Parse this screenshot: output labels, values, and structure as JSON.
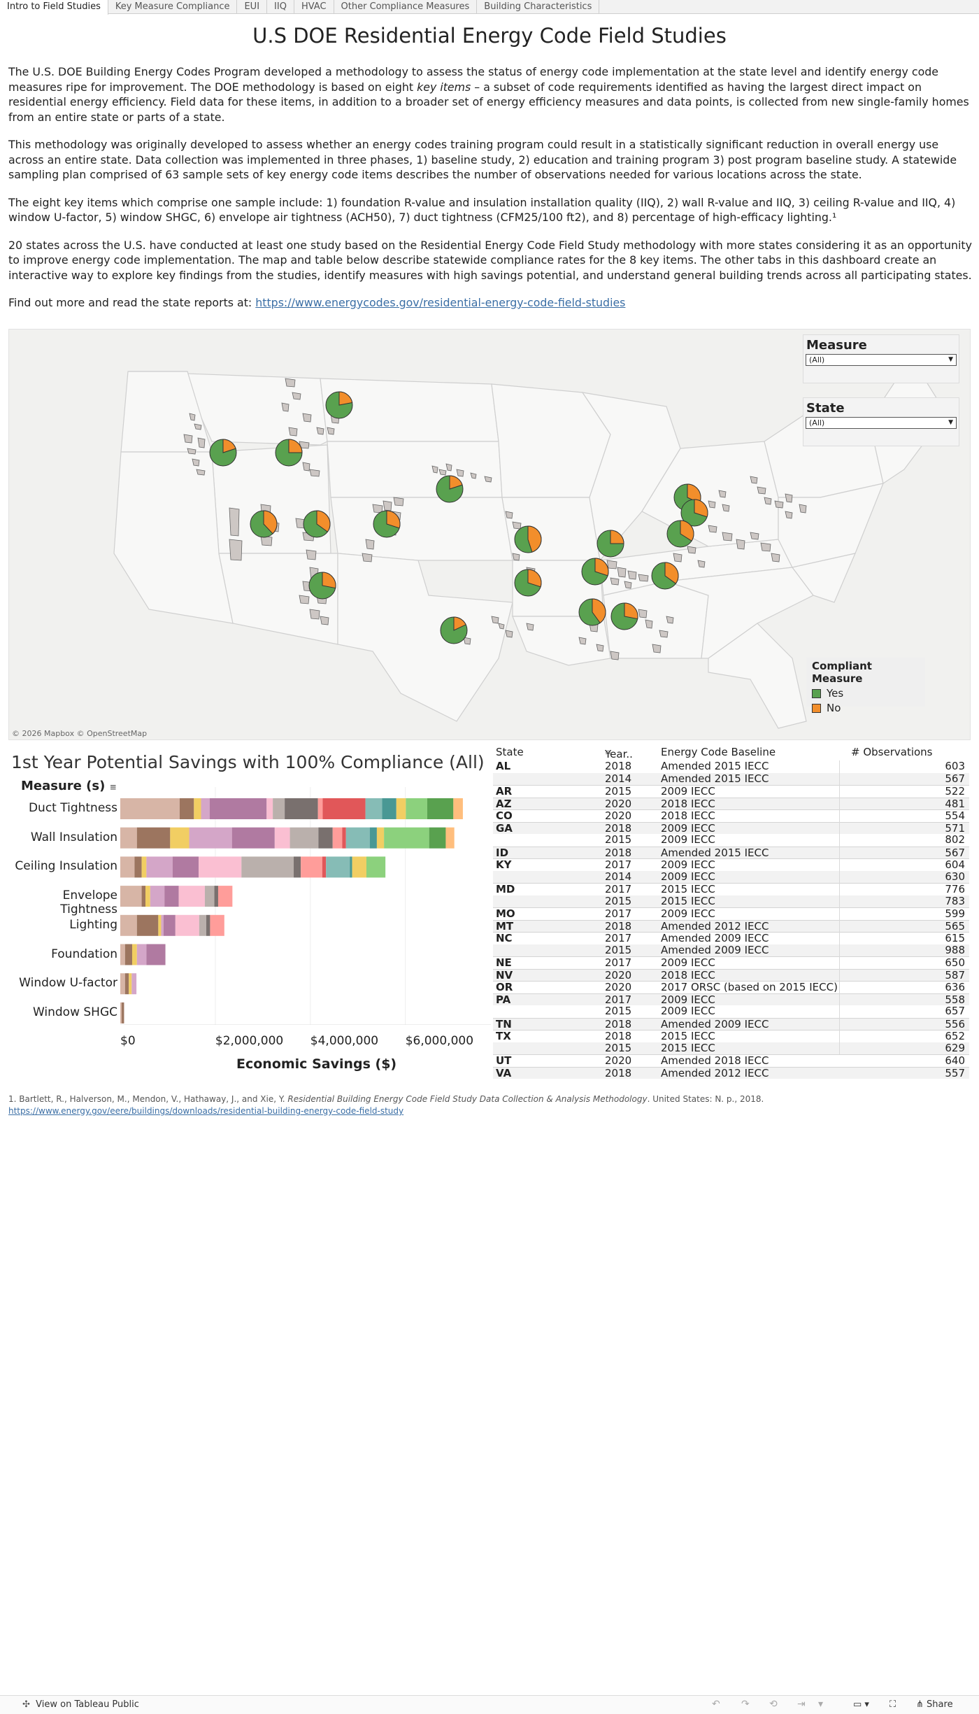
{
  "tabs": [
    "Intro to Field Studies",
    "Key Measure Compliance",
    "EUI",
    "IIQ",
    "HVAC",
    "Other Compliance Measures",
    "Building Characteristics"
  ],
  "page": {
    "title": "U.S DOE Residential Energy Code Field Studies",
    "p1a": "The U.S. DOE Building Energy Codes Program developed a methodology to assess the status of energy code implementation at the state level and identify energy code measures ripe for improvement. The DOE methodology is based on eight ",
    "p1_em": "key items",
    "p1b": " – a subset of code requirements identified as having the largest direct impact on residential energy efficiency. Field data for these items, in addition to a broader set of energy efficiency measures and data points, is collected from new single-family homes from an entire state or parts of a state.",
    "p2": "This methodology was originally developed to assess whether an energy codes training program could result in a statistically significant reduction in overall energy use across an entire state. Data collection was implemented in three phases, 1) baseline study, 2) education and training program 3) post program baseline study. A statewide sampling plan comprised of 63 sample sets of key energy code items describes the number of observations needed for various locations across the state.",
    "p3": "The eight key items which comprise one sample include: 1) foundation R-value and insulation installation quality (IIQ), 2) wall R-value and IIQ, 3) ceiling R-value and IIQ, 4) window U-factor, 5) window SHGC, 6) envelope air tightness (ACH50), 7) duct tightness (CFM25/100 ft2), and 8) percentage of high-efficacy lighting.¹",
    "p4": "20 states across the U.S. have conducted at least one study based on the Residential Energy Code Field Study methodology with more states considering it as an opportunity to improve energy code implementation. The map and table below describe statewide compliance rates for the 8 key items. The other tabs in this dashboard create an interactive way to explore key findings from the studies, identify measures with high savings potential, and understand general building trends across all participating states.",
    "link_prefix": "Find out more and read the state reports at: ",
    "link_text": "https://www.energycodes.gov/residential-energy-code-field-studies"
  },
  "map": {
    "attribution": "© 2026 Mapbox  © OpenStreetMap",
    "filters": [
      {
        "title": "Measure",
        "value": "(All)"
      },
      {
        "title": "State",
        "value": "(All)"
      }
    ],
    "legend": {
      "title": "Compliant Measure",
      "items": [
        {
          "label": "Yes",
          "color": "#59a14f"
        },
        {
          "label": "No",
          "color": "#f28e2b"
        }
      ]
    },
    "pies": [
      {
        "state": "MT",
        "yes": 0.78
      },
      {
        "state": "OR",
        "yes": 0.8
      },
      {
        "state": "ID",
        "yes": 0.75
      },
      {
        "state": "NV",
        "yes": 0.62
      },
      {
        "state": "UT",
        "yes": 0.65
      },
      {
        "state": "CO",
        "yes": 0.7
      },
      {
        "state": "AZ",
        "yes": 0.72
      },
      {
        "state": "NE",
        "yes": 0.8
      },
      {
        "state": "TX",
        "yes": 0.82
      },
      {
        "state": "MO",
        "yes": 0.55
      },
      {
        "state": "AR",
        "yes": 0.7
      },
      {
        "state": "KY",
        "yes": 0.75
      },
      {
        "state": "TN",
        "yes": 0.7
      },
      {
        "state": "NC",
        "yes": 0.65
      },
      {
        "state": "PA",
        "yes": 0.68
      },
      {
        "state": "MD",
        "yes": 0.7
      },
      {
        "state": "VA",
        "yes": 0.66
      },
      {
        "state": "AL",
        "yes": 0.6
      },
      {
        "state": "GA",
        "yes": 0.72
      }
    ]
  },
  "savings_chart": {
    "title": "1st Year Potential Savings with 100% Compliance (All)",
    "measure_header": "Measure (s)",
    "x_title": "Economic Savings ($)",
    "x_ticks": [
      "$0",
      "$2,000,000",
      "$4,000,000",
      "$6,000,000"
    ]
  },
  "chart_data": {
    "type": "bar",
    "orientation": "horizontal",
    "stacked": true,
    "title": "1st Year Potential Savings with 100% Compliance (All)",
    "xlabel": "Economic Savings ($)",
    "ylabel": "Measure (s)",
    "xlim": [
      0,
      7800000
    ],
    "categories": [
      "Duct Tightness",
      "Wall Insulation",
      "Ceiling Insulation",
      "Envelope Tightness",
      "Lighting",
      "Foundation",
      "Window U-factor",
      "Window SHGC"
    ],
    "segment_palette": [
      "#d7b5a6",
      "#9c755f",
      "#f1ce63",
      "#d4a6c8",
      "#b07aa1",
      "#fabfd2",
      "#bab0ac",
      "#79706e",
      "#ff9d9a",
      "#e15759",
      "#86bcb6",
      "#499894",
      "#f1ce63",
      "#8cd17d",
      "#59a14f",
      "#ffbe7d",
      "#f28e2b",
      "#4e79a7"
    ],
    "segments": [
      [
        1250000,
        300000,
        150000,
        180000,
        1200000,
        130000,
        250000,
        700000,
        100000,
        900000,
        350000,
        300000,
        200000,
        450000,
        550000,
        200000
      ],
      [
        350000,
        700000,
        400000,
        900000,
        900000,
        320000,
        600000,
        300000,
        200000,
        80000,
        500000,
        150000,
        150000,
        950000,
        350000,
        180000
      ],
      [
        300000,
        150000,
        100000,
        550000,
        550000,
        900000,
        1100000,
        150000,
        450000,
        80000,
        500000,
        50000,
        300000,
        400000
      ],
      [
        450000,
        80000,
        100000,
        300000,
        300000,
        550000,
        200000,
        80000,
        300000
      ],
      [
        350000,
        450000,
        60000,
        50000,
        250000,
        500000,
        150000,
        80000,
        300000
      ],
      [
        100000,
        150000,
        100000,
        200000,
        400000
      ],
      [
        100000,
        80000,
        60000,
        100000
      ],
      [
        30000,
        50000
      ]
    ]
  },
  "obs_table": {
    "headers": [
      "State",
      "Year..",
      "Energy Code Baseline",
      "# Observations"
    ],
    "groups": [
      {
        "state": "AL",
        "rows": [
          [
            "2018",
            "Amended 2015 IECC",
            "603"
          ],
          [
            "2014",
            "Amended 2015 IECC",
            "567"
          ]
        ]
      },
      {
        "state": "AR",
        "rows": [
          [
            "2015",
            "2009 IECC",
            "522"
          ]
        ]
      },
      {
        "state": "AZ",
        "rows": [
          [
            "2020",
            "2018 IECC",
            "481"
          ]
        ]
      },
      {
        "state": "CO",
        "rows": [
          [
            "2020",
            "2018 IECC",
            "554"
          ]
        ]
      },
      {
        "state": "GA",
        "rows": [
          [
            "2018",
            "2009 IECC",
            "571"
          ],
          [
            "2015",
            "2009 IECC",
            "802"
          ]
        ]
      },
      {
        "state": "ID",
        "rows": [
          [
            "2018",
            "Amended 2015 IECC",
            "567"
          ]
        ]
      },
      {
        "state": "KY",
        "rows": [
          [
            "2017",
            "2009 IECC",
            "604"
          ],
          [
            "2014",
            "2009 IECC",
            "630"
          ]
        ]
      },
      {
        "state": "MD",
        "rows": [
          [
            "2017",
            "2015 IECC",
            "776"
          ],
          [
            "2015",
            "2015 IECC",
            "783"
          ]
        ]
      },
      {
        "state": "MO",
        "rows": [
          [
            "2017",
            "2009 IECC",
            "599"
          ]
        ]
      },
      {
        "state": "MT",
        "rows": [
          [
            "2018",
            "Amended 2012 IECC",
            "565"
          ]
        ]
      },
      {
        "state": "NC",
        "rows": [
          [
            "2017",
            "Amended 2009 IECC",
            "615"
          ],
          [
            "2015",
            "Amended 2009 IECC",
            "988"
          ]
        ]
      },
      {
        "state": "NE",
        "rows": [
          [
            "2017",
            "2009 IECC",
            "650"
          ]
        ]
      },
      {
        "state": "NV",
        "rows": [
          [
            "2020",
            "2018 IECC",
            "587"
          ]
        ]
      },
      {
        "state": "OR",
        "rows": [
          [
            "2020",
            "2017 ORSC (based on 2015 IECC)",
            "636"
          ]
        ]
      },
      {
        "state": "PA",
        "rows": [
          [
            "2017",
            "2009 IECC",
            "558"
          ],
          [
            "2015",
            "2009 IECC",
            "657"
          ]
        ]
      },
      {
        "state": "TN",
        "rows": [
          [
            "2018",
            "Amended 2009 IECC",
            "556"
          ]
        ]
      },
      {
        "state": "TX",
        "rows": [
          [
            "2018",
            "2015 IECC",
            "652"
          ],
          [
            "2015",
            "2015 IECC",
            "629"
          ]
        ]
      },
      {
        "state": "UT",
        "rows": [
          [
            "2020",
            "Amended 2018 IECC",
            "640"
          ]
        ]
      },
      {
        "state": "VA",
        "rows": [
          [
            "2018",
            "Amended 2012 IECC",
            "557"
          ]
        ]
      }
    ]
  },
  "footnote": {
    "text_a": "1. Bartlett, R., Halverson, M., Mendon, V., Hathaway, J., and Xie, Y. ",
    "text_em": "Residential Building Energy Code Field Study Data Collection & Analysis Methodology",
    "text_b": ". United States: N. p., 2018. ",
    "link": "https://www.energy.gov/eere/buildings/downloads/residential-building-energy-code-field-study"
  },
  "bottom_bar": {
    "view_label": "View on Tableau Public",
    "share_label": "Share"
  }
}
